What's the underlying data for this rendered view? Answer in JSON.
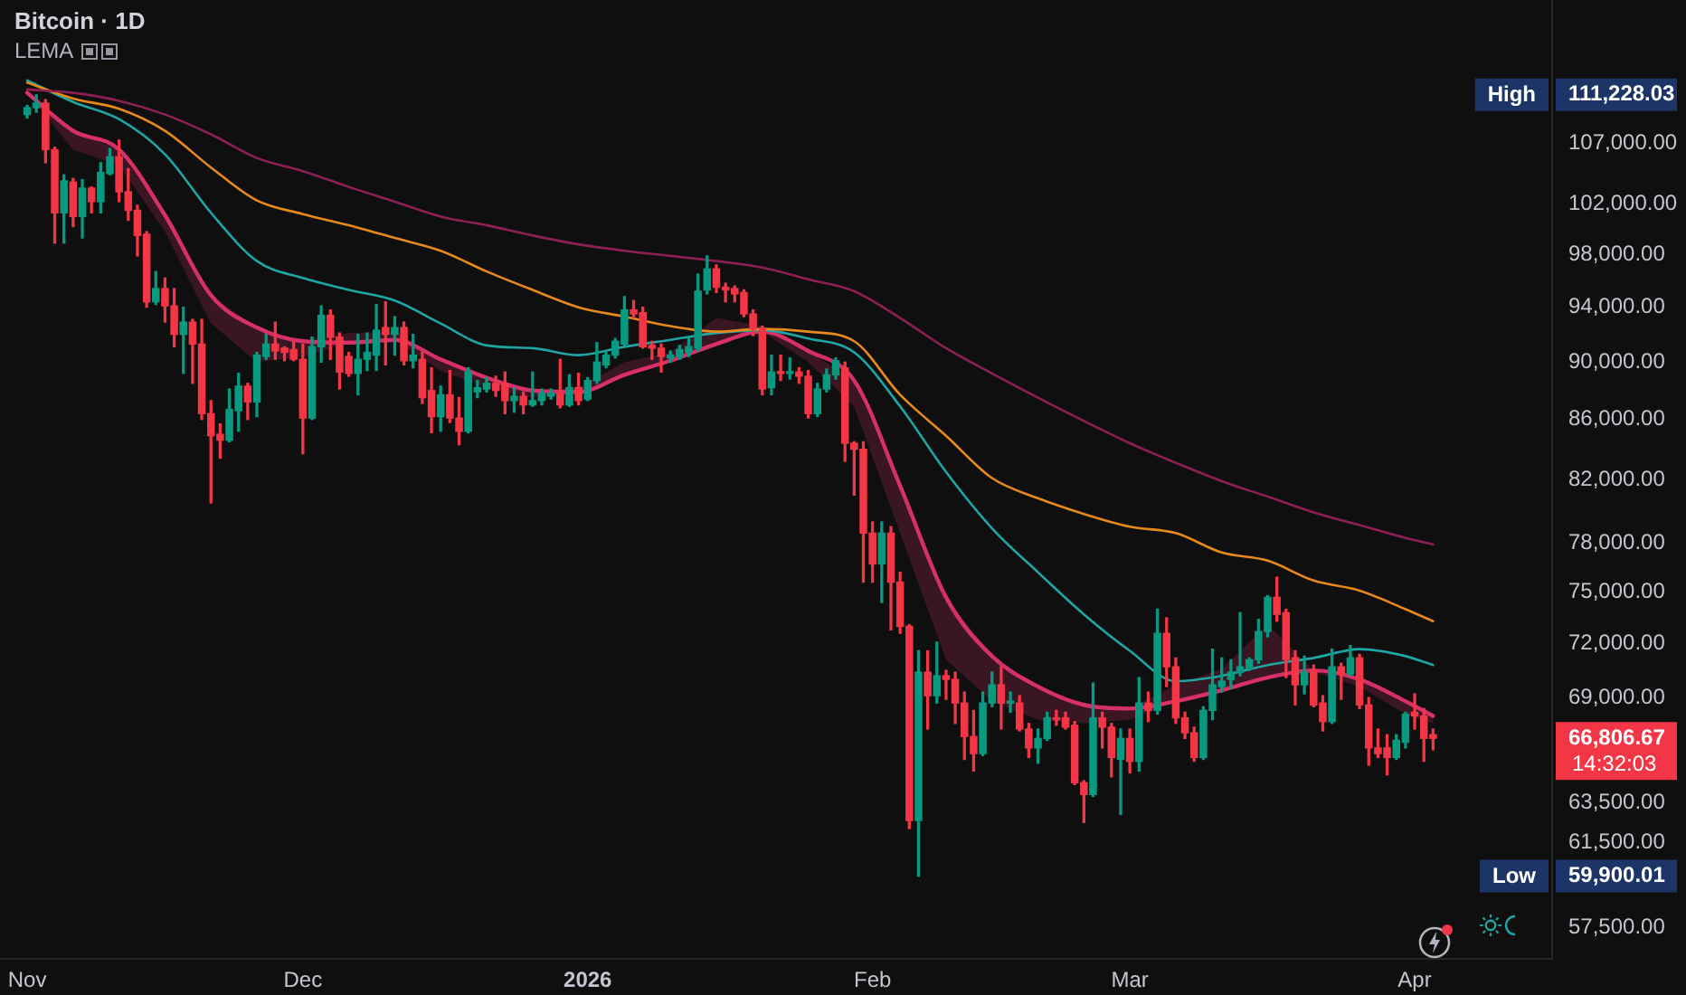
{
  "chart_data": {
    "type": "candlestick",
    "title": "Bitcoin · 1D",
    "subtitle": "LEMA",
    "x": [
      "2025-11-01",
      "2025-11-02",
      "2025-11-03",
      "2025-11-04",
      "2025-11-05",
      "2025-11-06",
      "2025-11-07",
      "2025-11-08",
      "2025-11-09",
      "2025-11-10",
      "2025-11-11",
      "2025-11-12",
      "2025-11-13",
      "2025-11-14",
      "2025-11-15",
      "2025-11-16",
      "2025-11-17",
      "2025-11-18",
      "2025-11-19",
      "2025-11-20",
      "2025-11-21",
      "2025-11-22",
      "2025-11-23",
      "2025-11-24",
      "2025-11-25",
      "2025-11-26",
      "2025-11-27",
      "2025-11-28",
      "2025-11-29",
      "2025-11-30",
      "2025-12-01",
      "2025-12-02",
      "2025-12-03",
      "2025-12-04",
      "2025-12-05",
      "2025-12-06",
      "2025-12-07",
      "2025-12-08",
      "2025-12-09",
      "2025-12-10",
      "2025-12-11",
      "2025-12-12",
      "2025-12-13",
      "2025-12-14",
      "2025-12-15",
      "2025-12-16",
      "2025-12-17",
      "2025-12-18",
      "2025-12-19",
      "2025-12-20",
      "2025-12-21",
      "2025-12-22",
      "2025-12-23",
      "2025-12-24",
      "2025-12-25",
      "2025-12-26",
      "2025-12-27",
      "2025-12-28",
      "2025-12-29",
      "2025-12-30",
      "2025-12-31",
      "2026-01-01",
      "2026-01-02",
      "2026-01-03",
      "2026-01-04",
      "2026-01-05",
      "2026-01-06",
      "2026-01-07",
      "2026-01-08",
      "2026-01-09",
      "2026-01-10",
      "2026-01-11",
      "2026-01-12",
      "2026-01-13",
      "2026-01-14",
      "2026-01-15",
      "2026-01-16",
      "2026-01-17",
      "2026-01-18",
      "2026-01-19",
      "2026-01-20",
      "2026-01-21",
      "2026-01-22",
      "2026-01-23",
      "2026-01-24",
      "2026-01-25",
      "2026-01-26",
      "2026-01-27",
      "2026-01-28",
      "2026-01-29",
      "2026-01-30",
      "2026-01-31",
      "2026-02-01",
      "2026-02-02",
      "2026-02-03",
      "2026-02-04",
      "2026-02-05",
      "2026-02-06",
      "2026-02-07",
      "2026-02-08",
      "2026-02-09",
      "2026-02-10",
      "2026-02-11",
      "2026-02-12",
      "2026-02-13",
      "2026-02-14",
      "2026-02-15",
      "2026-02-16",
      "2026-02-17",
      "2026-02-18",
      "2026-02-19",
      "2026-02-20",
      "2026-02-21",
      "2026-02-22",
      "2026-02-23",
      "2026-02-24",
      "2026-02-25",
      "2026-02-26",
      "2026-02-27",
      "2026-02-28",
      "2026-03-01",
      "2026-03-02",
      "2026-03-03",
      "2026-03-04",
      "2026-03-05",
      "2026-03-06",
      "2026-03-07",
      "2026-03-08",
      "2026-03-09",
      "2026-03-10",
      "2026-03-11",
      "2026-03-12",
      "2026-03-13",
      "2026-03-14",
      "2026-03-15",
      "2026-03-16",
      "2026-03-17",
      "2026-03-18",
      "2026-03-19",
      "2026-03-20",
      "2026-03-21",
      "2026-03-22",
      "2026-03-23",
      "2026-03-24",
      "2026-03-25",
      "2026-03-26",
      "2026-03-27",
      "2026-03-28",
      "2026-03-29",
      "2026-03-30",
      "2026-03-31",
      "2026-04-01",
      "2026-04-02",
      "2026-04-03"
    ],
    "ohlc": [
      [
        109500,
        110300,
        109200,
        110100
      ],
      [
        110100,
        111228.03,
        109700,
        110500
      ],
      [
        110500,
        110800,
        105400,
        106500
      ],
      [
        106500,
        106700,
        98900,
        101300
      ],
      [
        101300,
        104400,
        98900,
        103900
      ],
      [
        103800,
        104100,
        100200,
        101000
      ],
      [
        101000,
        104000,
        99300,
        103300
      ],
      [
        103300,
        103400,
        101300,
        102200
      ],
      [
        102200,
        105400,
        101300,
        104600
      ],
      [
        104500,
        106600,
        104400,
        105900
      ],
      [
        105900,
        107300,
        102200,
        103000
      ],
      [
        103000,
        104900,
        100700,
        101500
      ],
      [
        101500,
        101900,
        97900,
        99500
      ],
      [
        99600,
        99800,
        94000,
        94400
      ],
      [
        94400,
        96700,
        94200,
        95400
      ],
      [
        95400,
        96200,
        92900,
        94100
      ],
      [
        94100,
        95400,
        91100,
        92000
      ],
      [
        92000,
        94000,
        89200,
        92900
      ],
      [
        92900,
        93100,
        88500,
        91300
      ],
      [
        91300,
        93100,
        86000,
        86400
      ],
      [
        86400,
        87300,
        80500,
        84900
      ],
      [
        85000,
        85700,
        83400,
        84600
      ],
      [
        84600,
        88100,
        84500,
        86700
      ],
      [
        86600,
        89200,
        85200,
        88300
      ],
      [
        88300,
        88500,
        86000,
        87200
      ],
      [
        87200,
        90700,
        86200,
        90500
      ],
      [
        90400,
        92000,
        90200,
        91300
      ],
      [
        91300,
        92900,
        90200,
        90800
      ],
      [
        91000,
        91100,
        90100,
        90700
      ],
      [
        90900,
        91500,
        90100,
        90200
      ],
      [
        90200,
        91300,
        83700,
        86100
      ],
      [
        86100,
        91800,
        86000,
        91100
      ],
      [
        91100,
        94100,
        90000,
        93400
      ],
      [
        93400,
        93800,
        90200,
        91800
      ],
      [
        91800,
        92100,
        88100,
        89300
      ],
      [
        90400,
        90700,
        89000,
        89200
      ],
      [
        89200,
        92000,
        87700,
        90200
      ],
      [
        90200,
        92100,
        89400,
        90700
      ],
      [
        90500,
        94200,
        89400,
        92300
      ],
      [
        92500,
        94400,
        89800,
        92000
      ],
      [
        92000,
        93300,
        90500,
        92500
      ],
      [
        92500,
        92900,
        89800,
        90100
      ],
      [
        90100,
        92000,
        89600,
        90500
      ],
      [
        90200,
        90700,
        87100,
        87500
      ],
      [
        88000,
        89600,
        85100,
        86200
      ],
      [
        86200,
        88300,
        85200,
        87700
      ],
      [
        87700,
        89400,
        85800,
        86100
      ],
      [
        86100,
        87500,
        84300,
        85200
      ],
      [
        85200,
        89600,
        85100,
        89300
      ],
      [
        87900,
        88700,
        87500,
        88200
      ],
      [
        88100,
        88900,
        87900,
        88500
      ],
      [
        88500,
        89000,
        87600,
        88000
      ],
      [
        88500,
        89300,
        86400,
        87300
      ],
      [
        87300,
        88200,
        86500,
        87600
      ],
      [
        87600,
        87900,
        86400,
        87000
      ],
      [
        87000,
        89300,
        86900,
        87300
      ],
      [
        87300,
        88100,
        87000,
        87800
      ],
      [
        87600,
        88100,
        87400,
        87800
      ],
      [
        87800,
        90200,
        86800,
        87000
      ],
      [
        87000,
        89100,
        86900,
        88200
      ],
      [
        88200,
        89200,
        87000,
        87300
      ],
      [
        87400,
        88900,
        87300,
        88700
      ],
      [
        88700,
        91400,
        88500,
        90000
      ],
      [
        89800,
        90800,
        89600,
        90500
      ],
      [
        90500,
        91700,
        90300,
        91500
      ],
      [
        91300,
        94800,
        91200,
        93800
      ],
      [
        93800,
        94500,
        93200,
        93500
      ],
      [
        93600,
        94000,
        91000,
        91100
      ],
      [
        91200,
        91500,
        90200,
        91000
      ],
      [
        91000,
        91300,
        89300,
        90400
      ],
      [
        90300,
        90800,
        90000,
        90500
      ],
      [
        90400,
        91200,
        90200,
        90900
      ],
      [
        90700,
        91700,
        90400,
        91100
      ],
      [
        91000,
        96500,
        90800,
        95200
      ],
      [
        95300,
        97900,
        95000,
        96900
      ],
      [
        96900,
        97200,
        95100,
        95500
      ],
      [
        95500,
        95800,
        94400,
        95300
      ],
      [
        95400,
        95600,
        94400,
        95000
      ],
      [
        95100,
        95300,
        93300,
        93500
      ],
      [
        93500,
        93800,
        91900,
        92400
      ],
      [
        92400,
        92600,
        87700,
        88100
      ],
      [
        88200,
        90500,
        87700,
        89300
      ],
      [
        89300,
        90500,
        88700,
        89200
      ],
      [
        89200,
        90300,
        88800,
        89300
      ],
      [
        89300,
        89600,
        88500,
        89000
      ],
      [
        89000,
        89400,
        86100,
        86400
      ],
      [
        86400,
        88500,
        86200,
        88100
      ],
      [
        88100,
        89500,
        87900,
        89100
      ],
      [
        89100,
        90300,
        88800,
        90100
      ],
      [
        89600,
        90000,
        83200,
        84400
      ],
      [
        84400,
        84500,
        81000,
        84000
      ],
      [
        84000,
        84500,
        75600,
        78600
      ],
      [
        78600,
        79300,
        75600,
        76700
      ],
      [
        76700,
        79300,
        74400,
        78600
      ],
      [
        78600,
        79000,
        72800,
        75600
      ],
      [
        75600,
        76200,
        72600,
        73000
      ],
      [
        73000,
        73100,
        62200,
        62600
      ],
      [
        62600,
        71600,
        59900.01,
        70400
      ],
      [
        70400,
        71600,
        67300,
        69100
      ],
      [
        69100,
        72100,
        68700,
        70200
      ],
      [
        70200,
        70500,
        68900,
        70000
      ],
      [
        70000,
        70400,
        67600,
        68700
      ],
      [
        68700,
        69300,
        65700,
        66900
      ],
      [
        66900,
        68300,
        65100,
        66000
      ],
      [
        66000,
        69300,
        65900,
        68700
      ],
      [
        68700,
        70400,
        68500,
        69700
      ],
      [
        69700,
        70700,
        67300,
        68700
      ],
      [
        68700,
        69300,
        68200,
        68800
      ],
      [
        68700,
        69100,
        67200,
        67300
      ],
      [
        67300,
        67600,
        65800,
        66300
      ],
      [
        66300,
        67300,
        65500,
        66800
      ],
      [
        66800,
        68200,
        66700,
        67900
      ],
      [
        67900,
        68300,
        67500,
        67800
      ],
      [
        67900,
        68200,
        67300,
        67400
      ],
      [
        67500,
        67700,
        64400,
        64500
      ],
      [
        64500,
        64600,
        62500,
        63900
      ],
      [
        63900,
        69800,
        63800,
        67900
      ],
      [
        67900,
        68200,
        66300,
        67400
      ],
      [
        67400,
        67600,
        64800,
        65800
      ],
      [
        65700,
        67300,
        62900,
        66800
      ],
      [
        66800,
        67300,
        65000,
        65600
      ],
      [
        65600,
        70100,
        65100,
        68700
      ],
      [
        68700,
        69300,
        67700,
        68300
      ],
      [
        68300,
        74000,
        68100,
        72600
      ],
      [
        72600,
        73500,
        69600,
        70700
      ],
      [
        70700,
        71200,
        67600,
        67900
      ],
      [
        67900,
        68200,
        66800,
        67100
      ],
      [
        67100,
        67400,
        65600,
        65800
      ],
      [
        65800,
        68500,
        65700,
        68300
      ],
      [
        68300,
        71700,
        67800,
        69700
      ],
      [
        69600,
        71200,
        69300,
        69900
      ],
      [
        70000,
        71100,
        69500,
        70400
      ],
      [
        70400,
        73800,
        70200,
        70700
      ],
      [
        70600,
        71200,
        70500,
        71100
      ],
      [
        71100,
        73400,
        70900,
        72700
      ],
      [
        72700,
        74800,
        72400,
        74700
      ],
      [
        74700,
        75900,
        73300,
        73700
      ],
      [
        73800,
        74000,
        70100,
        71100
      ],
      [
        71200,
        71600,
        68600,
        69700
      ],
      [
        69700,
        71300,
        69200,
        70400
      ],
      [
        70500,
        70800,
        68500,
        68600
      ],
      [
        68700,
        69100,
        67200,
        67700
      ],
      [
        67700,
        71700,
        67600,
        70700
      ],
      [
        70700,
        70900,
        68900,
        70300
      ],
      [
        70300,
        71900,
        70200,
        71200
      ],
      [
        71200,
        71400,
        68400,
        68600
      ],
      [
        68600,
        69000,
        65400,
        66300
      ],
      [
        66300,
        67300,
        65800,
        66000
      ],
      [
        66300,
        67000,
        64900,
        65800
      ],
      [
        65800,
        67000,
        65700,
        66700
      ],
      [
        66600,
        68200,
        66300,
        68100
      ],
      [
        68200,
        69200,
        67300,
        68000
      ],
      [
        68000,
        68400,
        65600,
        66800
      ],
      [
        67000,
        67300,
        66200,
        66806.67
      ]
    ],
    "colors": [
      "#089981",
      "#089981",
      "#f23645",
      "#f23645",
      "#089981",
      "#f23645",
      "#089981",
      "#f23645",
      "#089981",
      "#089981",
      "#f23645",
      "#f23645",
      "#f23645",
      "#f23645",
      "#089981",
      "#f23645",
      "#f23645",
      "#089981",
      "#f23645",
      "#f23645",
      "#f23645",
      "#f23645",
      "#089981",
      "#089981",
      "#f23645",
      "#089981",
      "#089981",
      "#f23645",
      "#f23645",
      "#f23645",
      "#f23645",
      "#089981",
      "#089981",
      "#f23645",
      "#f23645",
      "#f23645",
      "#089981",
      "#089981",
      "#089981",
      "#f23645",
      "#089981",
      "#f23645",
      "#089981",
      "#f23645",
      "#f23645",
      "#089981",
      "#f23645",
      "#f23645",
      "#089981",
      "#089981",
      "#089981",
      "#f23645",
      "#f23645",
      "#089981",
      "#f23645",
      "#089981",
      "#089981",
      "#089981",
      "#f23645",
      "#089981",
      "#f23645",
      "#089981",
      "#089981",
      "#089981",
      "#089981",
      "#089981",
      "#f23645",
      "#f23645",
      "#f23645",
      "#f23645",
      "#089981",
      "#089981",
      "#089981",
      "#089981",
      "#089981",
      "#f23645",
      "#f23645",
      "#f23645",
      "#f23645",
      "#f23645",
      "#f23645",
      "#089981",
      "#f23645",
      "#089981",
      "#f23645",
      "#f23645",
      "#089981",
      "#089981",
      "#089981",
      "#f23645",
      "#f23645",
      "#f23645",
      "#f23645",
      "#089981",
      "#f23645",
      "#f23645",
      "#f23645",
      "#089981",
      "#f23645",
      "#089981",
      "#f23645",
      "#f23645",
      "#f23645",
      "#f23645",
      "#089981",
      "#089981",
      "#f23645",
      "#089981",
      "#f23645",
      "#f23645",
      "#089981",
      "#089981",
      "#f23645",
      "#f23645",
      "#f23645",
      "#f23645",
      "#089981",
      "#f23645",
      "#f23645",
      "#089981",
      "#f23645",
      "#089981",
      "#f23645",
      "#089981",
      "#f23645",
      "#f23645",
      "#f23645",
      "#f23645",
      "#089981",
      "#089981",
      "#089981",
      "#089981",
      "#089981",
      "#089981",
      "#089981",
      "#089981",
      "#f23645",
      "#f23645",
      "#f23645",
      "#089981",
      "#f23645",
      "#f23645",
      "#089981",
      "#f23645",
      "#089981",
      "#f23645",
      "#f23645",
      "#f23645",
      "#f23645",
      "#089981",
      "#089981",
      "#f23645",
      "#f23645",
      "#f23645"
    ],
    "series": [
      {
        "type": "line",
        "color": "#8e1f55",
        "x": [
          "2025-11-01",
          "2025-11-06",
          "2025-11-11",
          "2025-11-16",
          "2025-11-21",
          "2025-11-26",
          "2025-12-01",
          "2025-12-06",
          "2025-12-11",
          "2025-12-16",
          "2025-12-21",
          "2025-12-26",
          "2025-12-31",
          "2026-01-05",
          "2026-01-10",
          "2026-01-15",
          "2026-01-20",
          "2026-01-25",
          "2026-01-30",
          "2026-02-04",
          "2026-02-09",
          "2026-02-14",
          "2026-02-19",
          "2026-02-24",
          "2026-03-01",
          "2026-03-06",
          "2026-03-11",
          "2026-03-16",
          "2026-03-21",
          "2026-03-26",
          "2026-03-31",
          "2026-04-03"
        ],
        "values": [
          111700,
          111400,
          110700,
          109500,
          107800,
          105800,
          104700,
          103400,
          102200,
          101000,
          100300,
          99500,
          98800,
          98300,
          97900,
          97500,
          97000,
          96100,
          95200,
          93200,
          91000,
          89200,
          87500,
          85900,
          84400,
          83100,
          81900,
          80900,
          79900,
          79100,
          78300,
          77900
        ]
      },
      {
        "type": "line",
        "color": "#e8891c",
        "x": [
          "2025-11-01",
          "2025-11-06",
          "2025-11-11",
          "2025-11-16",
          "2025-11-21",
          "2025-11-26",
          "2025-12-01",
          "2025-12-06",
          "2025-12-11",
          "2025-12-16",
          "2025-12-21",
          "2025-12-26",
          "2025-12-31",
          "2026-01-05",
          "2026-01-10",
          "2026-01-15",
          "2026-01-20",
          "2026-01-25",
          "2026-01-30",
          "2026-02-04",
          "2026-02-09",
          "2026-02-14",
          "2026-02-19",
          "2026-02-24",
          "2026-03-01",
          "2026-03-06",
          "2026-03-11",
          "2026-03-16",
          "2026-03-21",
          "2026-03-26",
          "2026-03-31",
          "2026-04-03"
        ],
        "values": [
          112300,
          110900,
          110000,
          108100,
          105000,
          102300,
          101200,
          100300,
          99300,
          98300,
          96700,
          95300,
          94000,
          93300,
          92600,
          92200,
          92400,
          92200,
          91500,
          87700,
          84900,
          82100,
          80800,
          79800,
          79000,
          78600,
          77400,
          76900,
          75700,
          75100,
          74000,
          73300
        ]
      },
      {
        "type": "line",
        "color": "#1fa5a3",
        "x": [
          "2025-11-01",
          "2025-11-06",
          "2025-11-11",
          "2025-11-16",
          "2025-11-21",
          "2025-11-26",
          "2025-12-01",
          "2025-12-06",
          "2025-12-11",
          "2025-12-16",
          "2025-12-21",
          "2025-12-26",
          "2025-12-31",
          "2026-01-05",
          "2026-01-10",
          "2026-01-15",
          "2026-01-20",
          "2026-01-25",
          "2026-01-30",
          "2026-02-04",
          "2026-02-09",
          "2026-02-14",
          "2026-02-19",
          "2026-02-24",
          "2026-03-01",
          "2026-03-06",
          "2026-03-11",
          "2026-03-16",
          "2026-03-21",
          "2026-03-26",
          "2026-03-31",
          "2026-04-03"
        ],
        "values": [
          112500,
          110600,
          109100,
          106100,
          101300,
          97500,
          96200,
          95300,
          94500,
          92800,
          91200,
          91000,
          90500,
          91100,
          91600,
          92100,
          92300,
          91700,
          90700,
          86900,
          82500,
          78900,
          76200,
          73700,
          71600,
          69900,
          70200,
          70800,
          71200,
          71700,
          71300,
          70800
        ]
      },
      {
        "type": "line",
        "color": "#d62f6a",
        "x": [
          "2025-11-01",
          "2025-11-06",
          "2025-11-11",
          "2025-11-16",
          "2025-11-21",
          "2025-11-26",
          "2025-12-01",
          "2025-12-06",
          "2025-12-11",
          "2025-12-16",
          "2025-12-21",
          "2025-12-26",
          "2025-12-31",
          "2026-01-05",
          "2026-01-10",
          "2026-01-15",
          "2026-01-20",
          "2026-01-25",
          "2026-01-30",
          "2026-02-04",
          "2026-02-09",
          "2026-02-14",
          "2026-02-19",
          "2026-02-24",
          "2026-03-01",
          "2026-03-06",
          "2026-03-11",
          "2026-03-16",
          "2026-03-21",
          "2026-03-26",
          "2026-03-31",
          "2026-04-03"
        ],
        "values": [
          111400,
          108100,
          106500,
          101100,
          94900,
          92500,
          91500,
          91400,
          91600,
          90200,
          88900,
          88000,
          87900,
          89100,
          90100,
          91300,
          92200,
          90800,
          88700,
          81600,
          74700,
          71300,
          69600,
          68600,
          68400,
          68800,
          69400,
          70100,
          70500,
          70000,
          68800,
          68000
        ],
        "lower": [
          111400,
          106500,
          105200,
          99800,
          92800,
          90000,
          90400,
          91400,
          91600,
          89400,
          88200,
          87500,
          87900,
          89100,
          90100,
          91300,
          92200,
          90000,
          86900,
          78600,
          71100,
          68800,
          67800,
          67600,
          67800,
          68800,
          69400,
          70100,
          70400,
          69600,
          68100,
          67600
        ],
        "upper": [
          111600,
          108100,
          106500,
          101100,
          94900,
          92500,
          91500,
          92100,
          92200,
          90200,
          88900,
          88000,
          88200,
          90000,
          90700,
          93200,
          92600,
          90800,
          88700,
          81600,
          74700,
          71300,
          69600,
          68600,
          68400,
          69700,
          70600,
          73100,
          70500,
          70000,
          68800,
          68000
        ]
      }
    ],
    "xlim": [
      "2025-10-29T01:00",
      "2026-04-15T23:00"
    ],
    "xticks": [
      {
        "value": "2025-11-01",
        "label": "Nov"
      },
      {
        "value": "2025-12-01",
        "label": "Dec"
      },
      {
        "value": "2026-01-01",
        "label": "2026"
      },
      {
        "value": "2026-02-01",
        "label": "Feb"
      },
      {
        "value": "2026-03-01",
        "label": "Mar"
      },
      {
        "value": "2026-04-01",
        "label": "Apr"
      }
    ],
    "ylim": [
      56100,
      119900
    ],
    "yticks": [
      {
        "value": 57500,
        "label": "57,500.00"
      },
      {
        "value": 59900.01,
        "label": "59,900.01"
      },
      {
        "value": 61500,
        "label": "61,500.00"
      },
      {
        "value": 63500,
        "label": "63,500.00"
      },
      {
        "value": 66806.67,
        "label": "66,806.67"
      },
      {
        "value": 69000,
        "label": "69,000.00"
      },
      {
        "value": 72000,
        "label": "72,000.00"
      },
      {
        "value": 75000,
        "label": "75,000.00"
      },
      {
        "value": 78000,
        "label": "78,000.00"
      },
      {
        "value": 82000,
        "label": "82,000.00"
      },
      {
        "value": 86000,
        "label": "86,000.00"
      },
      {
        "value": 90000,
        "label": "90,000.00"
      },
      {
        "value": 94000,
        "label": "94,000.00"
      },
      {
        "value": 98000,
        "label": "98,000.00"
      },
      {
        "value": 102000,
        "label": "102,000.00"
      },
      {
        "value": 107000,
        "label": "107,000.00"
      },
      {
        "value": 111228.03,
        "label": "111,228.03"
      }
    ],
    "log": true,
    "grid": false,
    "legend": false,
    "marker": "none",
    "annotations": [
      "High",
      "14:32:03",
      "Low"
    ]
  }
}
